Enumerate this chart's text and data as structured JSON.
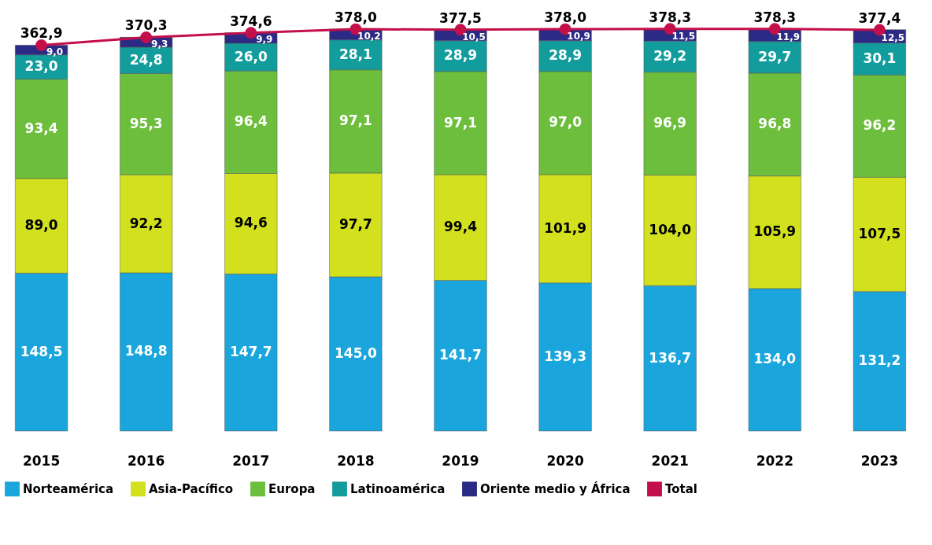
{
  "chart_data": {
    "type": "bar",
    "stacked": true,
    "data_labels": true,
    "legend": "bottom",
    "tick_labels": "x",
    "categories": [
      "2015",
      "2016",
      "2017",
      "2018",
      "2019",
      "2020",
      "2021",
      "2022",
      "2023"
    ],
    "series": [
      {
        "name": "Norteamérica",
        "color": "#1aa6dc",
        "values": [
          148.5,
          148.8,
          147.7,
          145.0,
          141.7,
          139.3,
          136.7,
          134.0,
          131.2
        ],
        "value_labels": [
          "148,5",
          "148,8",
          "147,7",
          "145,0",
          "141,7",
          "139,3",
          "136,7",
          "134,0",
          "131,2"
        ]
      },
      {
        "name": "Asia-Pacífico",
        "color": "#d2e01e",
        "values": [
          89.0,
          92.2,
          94.6,
          97.7,
          99.4,
          101.9,
          104.0,
          105.9,
          107.5
        ],
        "value_labels": [
          "89,0",
          "92,2",
          "94,6",
          "97,7",
          "99,4",
          "101,9",
          "104,0",
          "105,9",
          "107,5"
        ]
      },
      {
        "name": "Europa",
        "color": "#6cbe3c",
        "values": [
          93.4,
          95.3,
          96.4,
          97.1,
          97.1,
          97.0,
          96.9,
          96.8,
          96.2
        ],
        "value_labels": [
          "93,4",
          "95,3",
          "96,4",
          "97,1",
          "97,1",
          "97,0",
          "96,9",
          "96,8",
          "96,2"
        ]
      },
      {
        "name": "Latinoamérica",
        "color": "#139c9c",
        "values": [
          23.0,
          24.8,
          26.0,
          28.1,
          28.9,
          28.9,
          29.2,
          29.7,
          30.1
        ],
        "value_labels": [
          "23,0",
          "24,8",
          "26,0",
          "28,1",
          "28,9",
          "28,9",
          "29,2",
          "29,7",
          "30,1"
        ]
      },
      {
        "name": "Oriente medio y África",
        "color": "#2b2b86",
        "values": [
          9.0,
          9.3,
          9.9,
          10.2,
          10.5,
          10.9,
          11.5,
          11.9,
          12.5
        ],
        "value_labels": [
          "9,0",
          "9,3",
          "9,9",
          "10,2",
          "10,5",
          "10,9",
          "11,5",
          "11,9",
          "12,5"
        ]
      },
      {
        "name": "Total",
        "type": "line",
        "color": "#c4104a",
        "marker": "circle",
        "values": [
          362.9,
          370.3,
          374.6,
          378.0,
          377.5,
          378.0,
          378.3,
          378.3,
          377.4
        ],
        "value_labels": [
          "362,9",
          "370,3",
          "374,6",
          "378,0",
          "377,5",
          "378,0",
          "378,3",
          "378,3",
          "377,4"
        ]
      }
    ]
  }
}
